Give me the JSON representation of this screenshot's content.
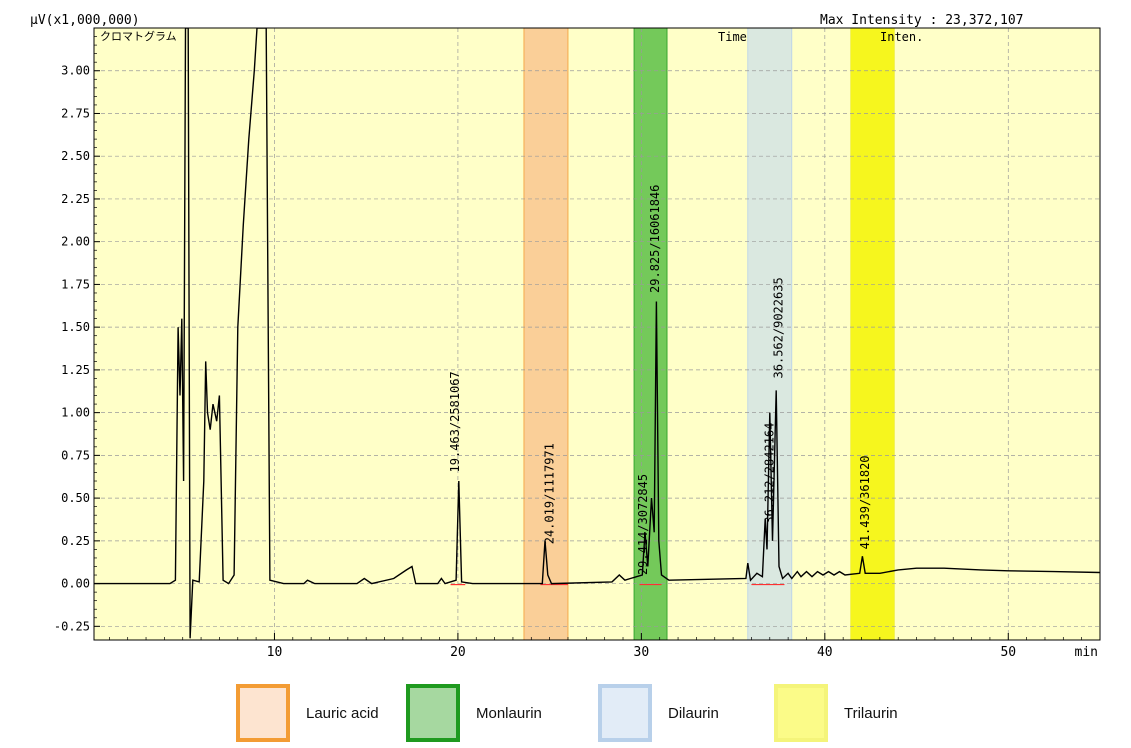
{
  "chart_data": {
    "type": "line",
    "header_left": "μV(x1,000,000)",
    "header_right": "Max Intensity : 23,372,107",
    "panel_label": "クロマトグラム",
    "column_headers": [
      "Time",
      "Inten."
    ],
    "xlabel": "min",
    "xlim": [
      0,
      55
    ],
    "ylim": [
      -0.33,
      3.25
    ],
    "x_ticks": [
      10,
      20,
      30,
      40,
      50
    ],
    "x_tick_labels": [
      "10",
      "20",
      "30",
      "40",
      "50"
    ],
    "y_ticks": [
      -0.25,
      0.0,
      0.25,
      0.5,
      0.75,
      1.0,
      1.25,
      1.5,
      1.75,
      2.0,
      2.25,
      2.5,
      2.75,
      3.0
    ],
    "y_tick_labels": [
      "-0.25",
      "0.00",
      "0.25",
      "0.50",
      "0.75",
      "1.00",
      "1.25",
      "1.50",
      "1.75",
      "2.00",
      "2.25",
      "2.50",
      "2.75",
      "3.00"
    ],
    "grid": true,
    "background_color": "#ffffc8",
    "highlight_bands": [
      {
        "name": "Lauric acid",
        "x_start": 23.6,
        "x_end": 26.0,
        "color": "#f9c78f",
        "border": "#f39c34"
      },
      {
        "name": "Monlaurin",
        "x_start": 29.6,
        "x_end": 31.4,
        "color": "#5cbf46",
        "border": "#1f9a1f"
      },
      {
        "name": "Dilaurin",
        "x_start": 35.8,
        "x_end": 38.2,
        "color": "#d4e4e4",
        "border": "#b8d0ea"
      },
      {
        "name": "Trilaurin",
        "x_start": 41.4,
        "x_end": 43.8,
        "color": "#f5f500",
        "border": "#f0f060"
      }
    ],
    "series": [
      {
        "color": "#000000",
        "points": [
          [
            0,
            0
          ],
          [
            4.3,
            0
          ],
          [
            4.6,
            0.02
          ],
          [
            4.75,
            1.5
          ],
          [
            4.85,
            1.1
          ],
          [
            4.95,
            1.55
          ],
          [
            5.05,
            0.6
          ],
          [
            5.15,
            3.25
          ],
          [
            5.3,
            3.25
          ],
          [
            5.4,
            -0.32
          ],
          [
            5.55,
            0.02
          ],
          [
            5.9,
            0.01
          ],
          [
            6.15,
            0.6
          ],
          [
            6.25,
            1.3
          ],
          [
            6.35,
            1.0
          ],
          [
            6.5,
            0.9
          ],
          [
            6.65,
            1.05
          ],
          [
            6.85,
            0.95
          ],
          [
            7.0,
            1.1
          ],
          [
            7.2,
            0.02
          ],
          [
            7.5,
            0.0
          ],
          [
            7.8,
            0.05
          ],
          [
            8.0,
            1.5
          ],
          [
            8.3,
            2.1
          ],
          [
            8.6,
            2.6
          ],
          [
            8.9,
            3.0
          ],
          [
            9.05,
            3.25
          ],
          [
            9.3,
            3.25
          ],
          [
            9.55,
            3.25
          ],
          [
            9.75,
            0.02
          ],
          [
            10.5,
            0.0
          ],
          [
            11.6,
            0.0
          ],
          [
            11.8,
            0.02
          ],
          [
            12.2,
            0.0
          ],
          [
            14.5,
            0.0
          ],
          [
            14.9,
            0.03
          ],
          [
            15.3,
            0.0
          ],
          [
            16.5,
            0.03
          ],
          [
            17.2,
            0.08
          ],
          [
            17.5,
            0.1
          ],
          [
            17.7,
            0.0
          ],
          [
            18.9,
            0.0
          ],
          [
            19.1,
            0.03
          ],
          [
            19.3,
            0.0
          ],
          [
            19.9,
            0.02
          ],
          [
            20.05,
            0.6
          ],
          [
            20.2,
            0.01
          ],
          [
            20.8,
            0.0
          ],
          [
            24.6,
            0.0
          ],
          [
            24.75,
            0.25
          ],
          [
            24.9,
            0.05
          ],
          [
            25.1,
            0.0
          ],
          [
            28.4,
            0.01
          ],
          [
            28.8,
            0.05
          ],
          [
            29.1,
            0.02
          ],
          [
            29.4,
            0.03
          ],
          [
            30.05,
            0.05
          ],
          [
            30.2,
            0.3
          ],
          [
            30.35,
            0.1
          ],
          [
            30.55,
            0.5
          ],
          [
            30.7,
            0.3
          ],
          [
            30.82,
            1.65
          ],
          [
            30.95,
            0.25
          ],
          [
            31.1,
            0.05
          ],
          [
            31.5,
            0.02
          ],
          [
            35.7,
            0.03
          ],
          [
            35.8,
            0.12
          ],
          [
            35.95,
            0.02
          ],
          [
            36.3,
            0.06
          ],
          [
            36.6,
            0.04
          ],
          [
            36.75,
            0.38
          ],
          [
            36.85,
            0.2
          ],
          [
            37.0,
            1.0
          ],
          [
            37.15,
            0.25
          ],
          [
            37.35,
            1.13
          ],
          [
            37.5,
            0.1
          ],
          [
            37.7,
            0.03
          ],
          [
            38.0,
            0.06
          ],
          [
            38.2,
            0.03
          ],
          [
            38.5,
            0.07
          ],
          [
            38.7,
            0.04
          ],
          [
            39.0,
            0.07
          ],
          [
            39.3,
            0.04
          ],
          [
            39.6,
            0.07
          ],
          [
            39.9,
            0.05
          ],
          [
            40.2,
            0.07
          ],
          [
            40.5,
            0.05
          ],
          [
            40.8,
            0.07
          ],
          [
            41.1,
            0.05
          ],
          [
            41.9,
            0.06
          ],
          [
            42.05,
            0.16
          ],
          [
            42.2,
            0.06
          ],
          [
            43.0,
            0.06
          ],
          [
            44.0,
            0.08
          ],
          [
            45.0,
            0.09
          ],
          [
            46.5,
            0.09
          ],
          [
            48.5,
            0.08
          ],
          [
            50.0,
            0.075
          ],
          [
            52.5,
            0.07
          ],
          [
            55.0,
            0.065
          ]
        ]
      }
    ],
    "baseline_markers": [
      {
        "x_start": 19.6,
        "x_end": 20.4,
        "color": "#ff3030"
      },
      {
        "x_start": 24.5,
        "x_end": 26.0,
        "color": "#ff3030"
      },
      {
        "x_start": 29.9,
        "x_end": 31.1,
        "color": "#ff3030"
      },
      {
        "x_start": 36.0,
        "x_end": 37.8,
        "color": "#ff3030"
      }
    ],
    "peak_labels": [
      {
        "x": 20.05,
        "text": "19.463/2581067"
      },
      {
        "x": 25.2,
        "text": "24.019/1117971"
      },
      {
        "x": 30.3,
        "text": "29.414/3072845"
      },
      {
        "x": 30.95,
        "text": "29.825/16061846"
      },
      {
        "x": 37.2,
        "text": "36.212/2842164"
      },
      {
        "x": 37.7,
        "text": "36.562/9022635"
      },
      {
        "x": 42.4,
        "text": "41.439/361820"
      }
    ]
  },
  "legend": {
    "items": [
      {
        "label": "Lauric acid",
        "fill": "#fde4d0",
        "border": "#f39c34"
      },
      {
        "label": "Monlaurin",
        "fill": "#a6d8a0",
        "border": "#1f9a1f"
      },
      {
        "label": "Dilaurin",
        "fill": "#e2ecf7",
        "border": "#b8d0ea"
      },
      {
        "label": "Trilaurin",
        "fill": "#fbfb88",
        "border": "#f4f47a"
      }
    ]
  }
}
